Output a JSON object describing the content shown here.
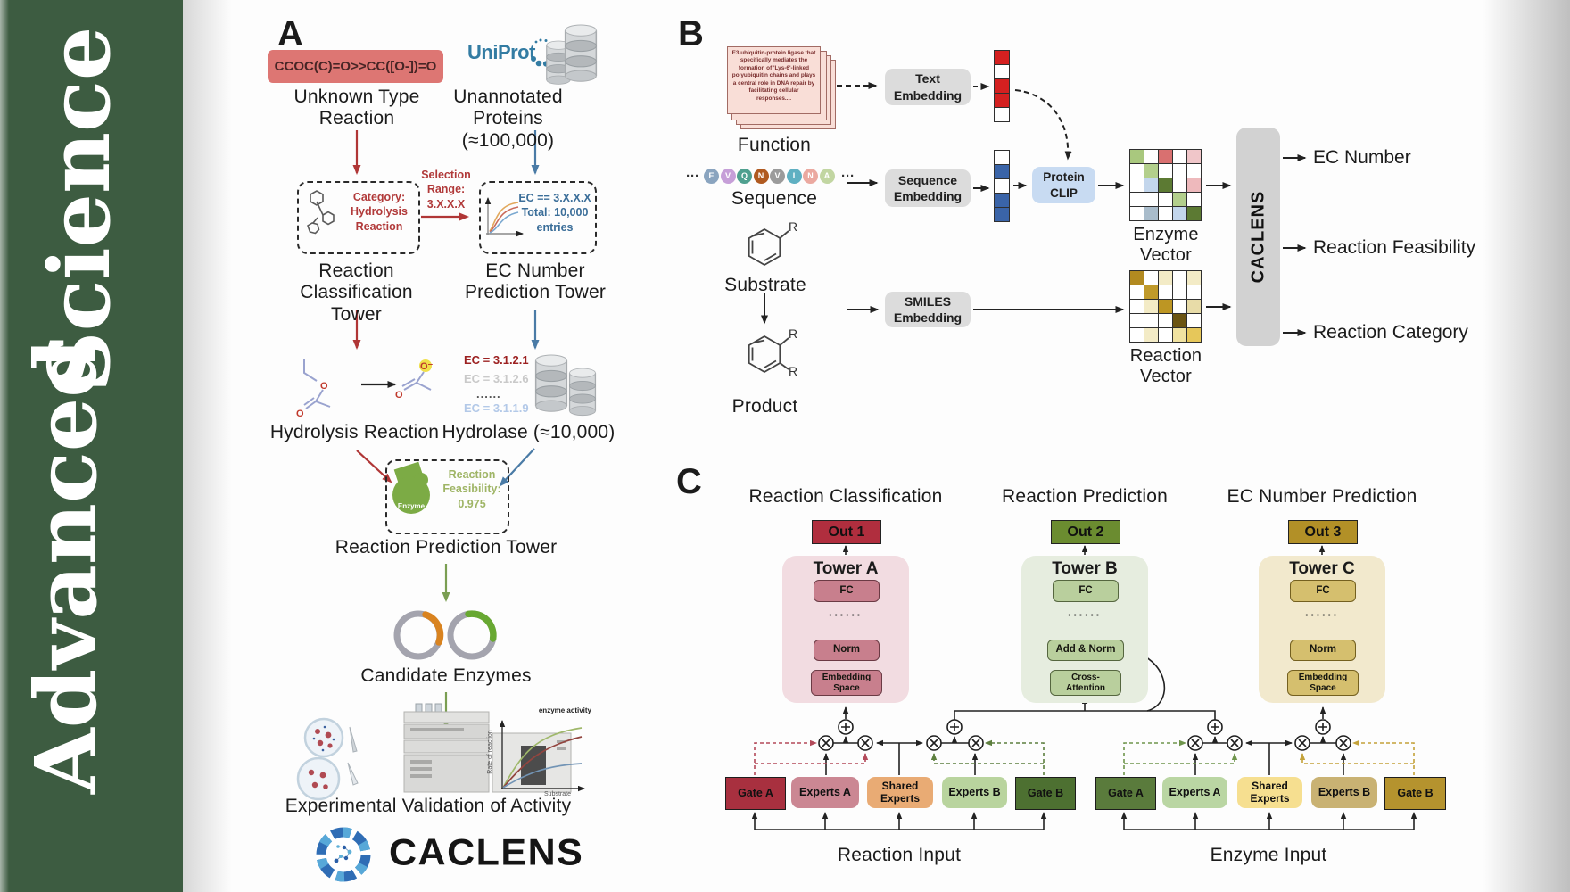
{
  "journal": {
    "word1": "Advanced",
    "word2": "Science"
  },
  "panelA": {
    "label": "A",
    "smiles": "CCOC(C)=O>>CC([O-])=O",
    "unknown_type": "Unknown Type\nReaction",
    "uniprot": "UniProt",
    "unannotated": "Unannotated\nProteins (≈100,000)",
    "category_box": "Category:\nHydrolysis\nReaction",
    "selection": "Selection\nRange:\n3.X.X.X",
    "ec_box": "EC == 3.X.X.X\nTotal: 10,000\nentries",
    "tower1": "Reaction\nClassification Tower",
    "tower2": "EC Number\nPrediction Tower",
    "ec_list": [
      {
        "text": "EC = 3.1.2.1",
        "color": "#9c2121"
      },
      {
        "text": "EC = 3.1.2.6",
        "color": "#c9c9c9"
      },
      {
        "text": "......",
        "color": "#555555"
      },
      {
        "text": "EC = 3.1.1.9",
        "color": "#b3c9e8"
      }
    ],
    "hydrolysis": "Hydrolysis Reaction",
    "hydrolase": "Hydrolase (≈10,000)",
    "enzyme_blob": "Enzyme",
    "feasibility": "Reaction\nFeasibility:\n0.975",
    "rpt": "Reaction Prediction Tower",
    "candidate": "Candidate Enzymes",
    "graph": {
      "curve_label": "enzyme activity",
      "ylabel": "Rate of reaction",
      "xlabel": "Substrate"
    },
    "expval": "Experimental Validation of Activity",
    "wordmark": "CACLENS"
  },
  "panelB": {
    "label": "B",
    "function_card": "E3 ubiquitin-protein ligase that specifically mediates the formation of 'Lys-6'-linked polyubiquitin chains and plays a central role in DNA repair by facilitating cellular responses....",
    "function": "Function",
    "ellipsis": "···",
    "residues": [
      {
        "l": "E",
        "c": "#8aa4bf"
      },
      {
        "l": "V",
        "c": "#c69fd8"
      },
      {
        "l": "Q",
        "c": "#4fa08f"
      },
      {
        "l": "N",
        "c": "#b05a20"
      },
      {
        "l": "V",
        "c": "#9b9b9b"
      },
      {
        "l": "I",
        "c": "#5fb0c2"
      },
      {
        "l": "N",
        "c": "#eba9a0"
      },
      {
        "l": "A",
        "c": "#c2d6a2"
      }
    ],
    "sequence": "Sequence",
    "text_embedding": "Text\nEmbedding",
    "sequence_embedding": "Sequence\nEmbedding",
    "smiles_embedding": "SMILES\nEmbedding",
    "protein_clip": "Protein\nCLIP",
    "text_vector": [
      "#d42020",
      "#ffffff",
      "#d42020",
      "#d42020",
      "#ffffff"
    ],
    "seq_vector": [
      "#ffffff",
      "#3a64a8",
      "#ffffff",
      "#3a64a8",
      "#3a64a8"
    ],
    "enzyme_grid": [
      [
        "#a9c87e",
        "#ffffff",
        "#d97070",
        "#ffffff",
        "#f0c6c9"
      ],
      [
        "#ffffff",
        "#b3cf8c",
        "#ffffff",
        "#ffffff",
        "#ffffff"
      ],
      [
        "#ffffff",
        "#c3d6ec",
        "#5c7a33",
        "#ffffff",
        "#eeb9bc"
      ],
      [
        "#ffffff",
        "#ffffff",
        "#ffffff",
        "#b3cf8c",
        "#ffffff"
      ],
      [
        "#ffffff",
        "#a9bccb",
        "#ffffff",
        "#c3d6ec",
        "#5c7a33"
      ]
    ],
    "reaction_grid": [
      [
        "#b28a20",
        "#ffffff",
        "#f3ebc6",
        "#ffffff",
        "#f3ebc6"
      ],
      [
        "#ffffff",
        "#c09a2a",
        "#ffffff",
        "#ffffff",
        "#ffffff"
      ],
      [
        "#ffffff",
        "#f3ebc6",
        "#bd9623",
        "#ffffff",
        "#e8dca8"
      ],
      [
        "#ffffff",
        "#ffffff",
        "#ffffff",
        "#6b5412",
        "#ffffff"
      ],
      [
        "#ffffff",
        "#f3ebc6",
        "#ffffff",
        "#f0e2a0",
        "#e6c75a"
      ]
    ],
    "enzyme_vector": "Enzyme Vector",
    "reaction_vector": "Reaction Vector",
    "caclens": "CACLENS",
    "outputs": [
      "EC Number",
      "Reaction Feasibility",
      "Reaction Category"
    ],
    "substrate": "Substrate",
    "product": "Product",
    "r": "R"
  },
  "panelC": {
    "label": "C",
    "headers": [
      "Reaction Classification",
      "Reaction Prediction",
      "EC Number Prediction"
    ],
    "outs": [
      {
        "label": "Out 1",
        "bg": "#b02e3e"
      },
      {
        "label": "Out 2",
        "bg": "#6b8c30"
      },
      {
        "label": "Out 3",
        "bg": "#b29027"
      }
    ],
    "towers": [
      {
        "name": "Tower A",
        "fc": "FC",
        "dots": "······",
        "mid": "Norm",
        "bottom": "Embedding\nSpace",
        "bg": "#f2dce1",
        "box": "#c87f8d",
        "border": "#6b3a44"
      },
      {
        "name": "Tower B",
        "fc": "FC",
        "dots": "······",
        "mid": "Add & Norm",
        "bottom": "Cross-\nAttention",
        "bg": "#e6eddf",
        "box": "#b9cf9d",
        "border": "#55663f"
      },
      {
        "name": "Tower C",
        "fc": "FC",
        "dots": "······",
        "mid": "Norm",
        "bottom": "Embedding\nSpace",
        "bg": "#f2e9cd",
        "box": "#d5bf6e",
        "border": "#74601f"
      }
    ],
    "groups": [
      {
        "input": "Reaction Input",
        "boxes": [
          {
            "label": "Gate A",
            "bg": "#a8303f"
          },
          {
            "label": "Experts A",
            "bg": "#cb8793"
          },
          {
            "label": "Shared\nExperts",
            "bg": "#e9ab74"
          },
          {
            "label": "Experts B",
            "bg": "#b9d49e"
          },
          {
            "label": "Gate B",
            "bg": "#4d7031"
          }
        ]
      },
      {
        "input": "Enzyme Input",
        "boxes": [
          {
            "label": "Gate A",
            "bg": "#5a7b3c"
          },
          {
            "label": "Experts A",
            "bg": "#bad6a3"
          },
          {
            "label": "Shared\nExperts",
            "bg": "#f6df90"
          },
          {
            "label": "Experts B",
            "bg": "#c9b273"
          },
          {
            "label": "Gate B",
            "bg": "#b5932e"
          }
        ]
      }
    ]
  }
}
